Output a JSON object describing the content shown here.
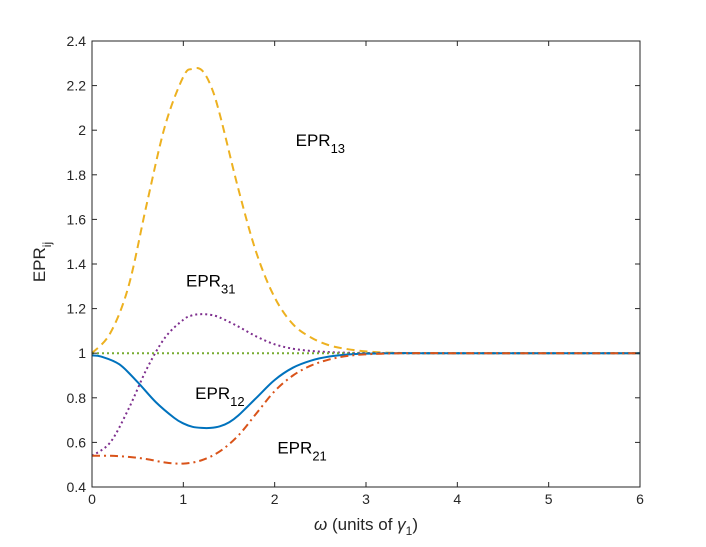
{
  "chart_data": {
    "type": "line",
    "xlabel": {
      "symbol": "ω",
      "text": " (units of ",
      "sym2": "γ",
      "sub": "1",
      "close": ")"
    },
    "ylabel": {
      "main": "EPR",
      "sub": "ij"
    },
    "xlim": [
      0,
      6
    ],
    "ylim": [
      0.4,
      2.4
    ],
    "xticks": [
      0,
      1,
      2,
      3,
      4,
      5,
      6
    ],
    "yticks": [
      0.4,
      0.6,
      0.8,
      1,
      1.2,
      1.4,
      1.6,
      1.8,
      2,
      2.2,
      2.4
    ],
    "xtick_labels": [
      "0",
      "1",
      "2",
      "3",
      "4",
      "5",
      "6"
    ],
    "ytick_labels": [
      "0.4",
      "0.6",
      "0.8",
      "1",
      "1.2",
      "1.4",
      "1.6",
      "1.8",
      "2",
      "2.2",
      "2.4"
    ],
    "grid": false,
    "series": [
      {
        "id": "EPR13",
        "color": "#EDB120",
        "dash": "dashed",
        "x": [
          0,
          0.2,
          0.4,
          0.6,
          0.8,
          1.0,
          1.1,
          1.2,
          1.3,
          1.4,
          1.6,
          1.8,
          2.0,
          2.2,
          2.4,
          2.6,
          2.8,
          3.0,
          3.2,
          3.4,
          3.6,
          4.0,
          5.0,
          6.0
        ],
        "y": [
          1.0,
          1.09,
          1.3,
          1.67,
          2.02,
          2.24,
          2.275,
          2.27,
          2.2,
          2.07,
          1.74,
          1.45,
          1.25,
          1.13,
          1.07,
          1.035,
          1.018,
          1.008,
          1.003,
          1.001,
          1.0,
          1.0,
          1.0,
          1.0
        ]
      },
      {
        "id": "EPR31",
        "color": "#7E2F8E",
        "dash": "dotted",
        "x": [
          0,
          0.2,
          0.4,
          0.6,
          0.8,
          1.0,
          1.1,
          1.2,
          1.3,
          1.4,
          1.6,
          1.8,
          2.0,
          2.2,
          2.4,
          2.6,
          2.8,
          3.0,
          3.5,
          4.0,
          5.0,
          6.0
        ],
        "y": [
          0.54,
          0.6,
          0.75,
          0.93,
          1.07,
          1.15,
          1.17,
          1.175,
          1.172,
          1.16,
          1.12,
          1.075,
          1.04,
          1.02,
          1.01,
          1.005,
          1.002,
          1.001,
          1.0,
          1.0,
          1.0,
          1.0
        ]
      },
      {
        "id": "EPR1",
        "color": "#77AC30",
        "dash": "dotted",
        "x": [
          0,
          6
        ],
        "y": [
          1.0,
          1.0
        ]
      },
      {
        "id": "EPR12",
        "color": "#0072BD",
        "dash": "solid",
        "x": [
          0,
          0.1,
          0.3,
          0.5,
          0.7,
          0.9,
          1.0,
          1.1,
          1.2,
          1.3,
          1.4,
          1.5,
          1.6,
          1.8,
          2.0,
          2.2,
          2.4,
          2.6,
          2.8,
          3.0,
          3.3,
          3.6,
          4.0,
          5.0,
          6.0
        ],
        "y": [
          0.99,
          0.985,
          0.95,
          0.87,
          0.78,
          0.71,
          0.685,
          0.67,
          0.665,
          0.665,
          0.672,
          0.69,
          0.72,
          0.8,
          0.88,
          0.935,
          0.967,
          0.985,
          0.994,
          0.998,
          1.0,
          1.0,
          1.0,
          1.0,
          1.0
        ]
      },
      {
        "id": "EPR21",
        "color": "#D95319",
        "dash": "dashdot",
        "x": [
          0,
          0.2,
          0.4,
          0.6,
          0.8,
          1.0,
          1.2,
          1.4,
          1.6,
          1.8,
          2.0,
          2.2,
          2.4,
          2.6,
          2.8,
          3.0,
          3.2,
          3.5,
          4.0,
          5.0,
          6.0
        ],
        "y": [
          0.54,
          0.54,
          0.535,
          0.525,
          0.51,
          0.505,
          0.52,
          0.56,
          0.63,
          0.73,
          0.83,
          0.9,
          0.945,
          0.972,
          0.988,
          0.995,
          0.998,
          1.0,
          1.0,
          1.0,
          1.0
        ]
      }
    ],
    "annotations": [
      {
        "id": "EPR13",
        "main": "EPR",
        "sub": "13",
        "x": 2.5,
        "y": 1.93
      },
      {
        "id": "EPR31",
        "main": "EPR",
        "sub": "31",
        "x": 1.3,
        "y": 1.3
      },
      {
        "id": "EPR12",
        "main": "EPR",
        "sub": "12",
        "x": 1.4,
        "y": 0.795
      },
      {
        "id": "EPR21",
        "main": "EPR",
        "sub": "21",
        "x": 2.3,
        "y": 0.55
      }
    ]
  }
}
